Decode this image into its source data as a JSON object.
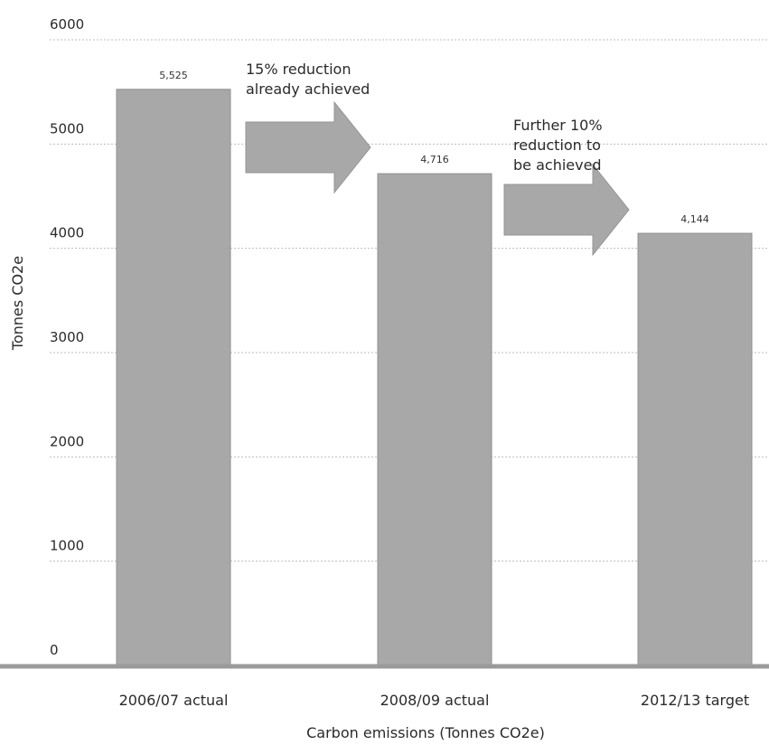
{
  "chart_data": {
    "type": "bar",
    "categories": [
      "2006/07 actual",
      "2008/09 actual",
      "2012/13 target"
    ],
    "values": [
      5525,
      4716,
      4144
    ],
    "value_labels": [
      "5,525",
      "4,716",
      "4,144"
    ],
    "title": "",
    "xlabel": "Carbon emissions (Tonnes CO2e)",
    "ylabel": "Tonnes CO2e",
    "ylim": [
      0,
      6000
    ],
    "yticks": [
      0,
      1000,
      2000,
      3000,
      4000,
      5000,
      6000
    ],
    "ytick_labels": [
      "0",
      "1000",
      "2000",
      "3000",
      "4000",
      "5000",
      "6000"
    ],
    "grid": true,
    "legend": "none",
    "annotations": [
      {
        "id": "first",
        "lines": [
          "15% reduction",
          "already achieved"
        ],
        "from_category": "2006/07 actual",
        "to_category": "2008/09 actual"
      },
      {
        "id": "second",
        "lines": [
          "Further 10%",
          "reduction to",
          "be achieved"
        ],
        "from_category": "2008/09 actual",
        "to_category": "2012/13 target"
      }
    ]
  },
  "colors": {
    "bar": "#a8a8a8",
    "bar_edge": "#8f8f8f",
    "arrow": "#a8a8a8",
    "text": "#2a2a2a"
  }
}
